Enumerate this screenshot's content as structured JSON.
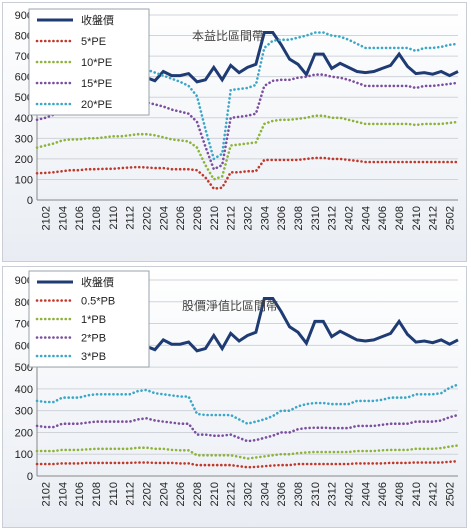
{
  "chart_data": [
    {
      "type": "line",
      "title": "本益比區間帶",
      "ylim": [
        0,
        900
      ],
      "yticks": [
        0,
        100,
        200,
        300,
        400,
        500,
        600,
        700,
        800,
        900
      ],
      "x_tick_labels": [
        "2102",
        "2104",
        "2106",
        "2108",
        "2110",
        "2112",
        "2202",
        "2204",
        "2206",
        "2208",
        "2210",
        "2212",
        "2302",
        "2304",
        "2306",
        "2308",
        "2310",
        "2312",
        "2402",
        "2404",
        "2406",
        "2408",
        "2410",
        "2412",
        "2502"
      ],
      "x_tick_every": 2,
      "x": [
        "2101",
        "2102",
        "2103",
        "2104",
        "2105",
        "2106",
        "2107",
        "2108",
        "2109",
        "2110",
        "2111",
        "2112",
        "2201",
        "2202",
        "2203",
        "2204",
        "2205",
        "2206",
        "2207",
        "2208",
        "2209",
        "2210",
        "2211",
        "2212",
        "2301",
        "2302",
        "2303",
        "2304",
        "2305",
        "2306",
        "2307",
        "2308",
        "2309",
        "2310",
        "2311",
        "2312",
        "2401",
        "2402",
        "2403",
        "2404",
        "2405",
        "2406",
        "2407",
        "2408",
        "2409",
        "2410",
        "2411",
        "2412",
        "2501",
        "2502",
        "2503"
      ],
      "legend_position": "top-left",
      "grid": true,
      "series": [
        {
          "name": "收盤價",
          "color": "#1f3b73",
          "style": "solid",
          "values": [
            595,
            600,
            610,
            605,
            615,
            600,
            610,
            625,
            615,
            600,
            620,
            605,
            620,
            595,
            580,
            625,
            605,
            605,
            615,
            575,
            585,
            645,
            585,
            655,
            620,
            645,
            660,
            815,
            815,
            755,
            685,
            660,
            610,
            710,
            710,
            640,
            665,
            645,
            625,
            620,
            625,
            640,
            655,
            710,
            650,
            615,
            620,
            612,
            625,
            605,
            625
          ]
        },
        {
          "name": "5*PE",
          "color": "#c0392b",
          "style": "dotted",
          "values": [
            130,
            132,
            135,
            140,
            145,
            145,
            150,
            150,
            152,
            152,
            155,
            158,
            160,
            158,
            155,
            155,
            150,
            150,
            150,
            145,
            110,
            55,
            60,
            135,
            135,
            140,
            140,
            195,
            195,
            195,
            195,
            195,
            200,
            205,
            205,
            200,
            200,
            195,
            190,
            185,
            185,
            185,
            185,
            185,
            185,
            185,
            185,
            185,
            185,
            185,
            185
          ]
        },
        {
          "name": "10*PE",
          "color": "#8db33a",
          "style": "dotted",
          "values": [
            255,
            265,
            275,
            290,
            295,
            295,
            300,
            300,
            305,
            310,
            310,
            315,
            320,
            320,
            315,
            305,
            295,
            290,
            285,
            255,
            170,
            100,
            115,
            265,
            270,
            275,
            280,
            370,
            385,
            390,
            390,
            395,
            400,
            410,
            410,
            400,
            400,
            390,
            380,
            370,
            370,
            370,
            370,
            370,
            370,
            365,
            370,
            370,
            370,
            375,
            380
          ]
        },
        {
          "name": "15*PE",
          "color": "#7b4fa0",
          "style": "dotted",
          "values": [
            390,
            400,
            415,
            440,
            450,
            450,
            455,
            460,
            465,
            470,
            470,
            480,
            480,
            475,
            465,
            455,
            440,
            430,
            420,
            380,
            260,
            150,
            170,
            400,
            405,
            410,
            420,
            555,
            580,
            585,
            585,
            595,
            600,
            610,
            610,
            600,
            595,
            585,
            570,
            555,
            555,
            555,
            555,
            555,
            555,
            545,
            555,
            555,
            560,
            565,
            570
          ]
        },
        {
          "name": "20*PE",
          "color": "#3aa7c8",
          "style": "dotted",
          "values": [
            520,
            535,
            555,
            585,
            600,
            600,
            610,
            615,
            620,
            625,
            630,
            640,
            640,
            635,
            620,
            605,
            590,
            575,
            555,
            505,
            345,
            200,
            225,
            535,
            540,
            545,
            560,
            740,
            775,
            780,
            780,
            790,
            800,
            815,
            815,
            800,
            795,
            780,
            760,
            740,
            740,
            740,
            740,
            740,
            740,
            725,
            740,
            740,
            745,
            755,
            760
          ]
        }
      ]
    },
    {
      "type": "line",
      "title": "股價淨值比區間帶",
      "ylim": [
        0,
        900
      ],
      "yticks": [
        0,
        100,
        200,
        300,
        400,
        500,
        600,
        700,
        800,
        900
      ],
      "x_tick_labels": [
        "2102",
        "2104",
        "2106",
        "2108",
        "2110",
        "2112",
        "2202",
        "2204",
        "2206",
        "2208",
        "2210",
        "2212",
        "2302",
        "2304",
        "2306",
        "2308",
        "2310",
        "2312",
        "2402",
        "2404",
        "2406",
        "2408",
        "2410",
        "2412",
        "2502"
      ],
      "x_tick_every": 2,
      "x": [
        "2101",
        "2102",
        "2103",
        "2104",
        "2105",
        "2106",
        "2107",
        "2108",
        "2109",
        "2110",
        "2111",
        "2112",
        "2201",
        "2202",
        "2203",
        "2204",
        "2205",
        "2206",
        "2207",
        "2208",
        "2209",
        "2210",
        "2211",
        "2212",
        "2301",
        "2302",
        "2303",
        "2304",
        "2305",
        "2306",
        "2307",
        "2308",
        "2309",
        "2310",
        "2311",
        "2312",
        "2401",
        "2402",
        "2403",
        "2404",
        "2405",
        "2406",
        "2407",
        "2408",
        "2409",
        "2410",
        "2411",
        "2412",
        "2501",
        "2502",
        "2503"
      ],
      "legend_position": "top-left",
      "grid": true,
      "series": [
        {
          "name": "收盤價",
          "color": "#1f3b73",
          "style": "solid",
          "values": [
            595,
            600,
            610,
            605,
            615,
            600,
            610,
            625,
            615,
            600,
            620,
            605,
            620,
            595,
            580,
            625,
            605,
            605,
            615,
            575,
            585,
            645,
            585,
            655,
            620,
            645,
            660,
            815,
            815,
            755,
            685,
            660,
            610,
            710,
            710,
            640,
            665,
            645,
            625,
            620,
            625,
            640,
            655,
            710,
            650,
            615,
            620,
            612,
            625,
            605,
            625
          ]
        },
        {
          "name": "0.5*PB",
          "color": "#c0392b",
          "style": "dotted",
          "values": [
            55,
            55,
            55,
            58,
            58,
            58,
            60,
            60,
            60,
            60,
            60,
            60,
            62,
            62,
            60,
            60,
            60,
            58,
            58,
            50,
            50,
            50,
            50,
            50,
            45,
            40,
            42,
            45,
            48,
            50,
            50,
            55,
            55,
            55,
            55,
            55,
            55,
            55,
            58,
            58,
            58,
            58,
            60,
            60,
            60,
            62,
            62,
            62,
            62,
            65,
            68
          ]
        },
        {
          "name": "1*PB",
          "color": "#8db33a",
          "style": "dotted",
          "values": [
            115,
            115,
            115,
            120,
            120,
            120,
            122,
            125,
            125,
            125,
            125,
            125,
            130,
            130,
            125,
            125,
            120,
            118,
            118,
            95,
            95,
            95,
            95,
            95,
            88,
            80,
            85,
            90,
            95,
            100,
            100,
            105,
            108,
            110,
            110,
            110,
            110,
            110,
            115,
            115,
            115,
            118,
            120,
            120,
            120,
            125,
            125,
            125,
            128,
            135,
            140
          ]
        },
        {
          "name": "2*PB",
          "color": "#7b4fa0",
          "style": "dotted",
          "values": [
            230,
            225,
            225,
            240,
            240,
            240,
            245,
            250,
            250,
            250,
            250,
            250,
            260,
            265,
            255,
            250,
            245,
            240,
            240,
            190,
            190,
            185,
            185,
            190,
            175,
            160,
            165,
            175,
            185,
            200,
            200,
            215,
            220,
            222,
            222,
            220,
            220,
            220,
            230,
            230,
            230,
            235,
            240,
            240,
            240,
            250,
            250,
            250,
            255,
            270,
            280
          ]
        },
        {
          "name": "3*PB",
          "color": "#3aa7c8",
          "style": "dotted",
          "values": [
            345,
            340,
            340,
            360,
            360,
            360,
            370,
            375,
            375,
            375,
            375,
            375,
            390,
            395,
            380,
            375,
            370,
            365,
            365,
            285,
            280,
            280,
            280,
            280,
            260,
            240,
            250,
            260,
            275,
            300,
            300,
            320,
            330,
            335,
            335,
            330,
            330,
            330,
            345,
            345,
            345,
            350,
            360,
            360,
            360,
            375,
            375,
            375,
            380,
            405,
            420
          ]
        }
      ]
    }
  ]
}
